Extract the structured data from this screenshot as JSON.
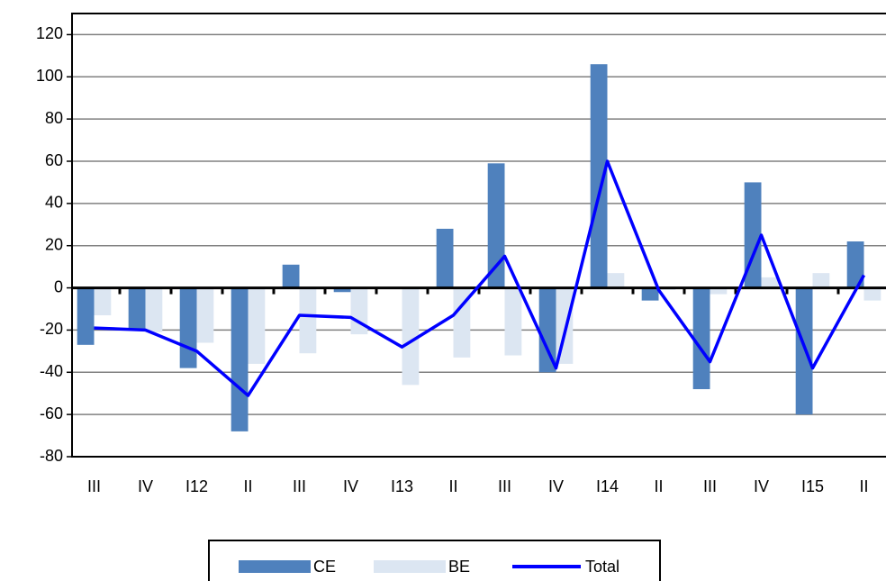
{
  "chart_data": {
    "type": "bar-line",
    "categories": [
      "III",
      "IV",
      "I12",
      "II",
      "III",
      "IV",
      "I13",
      "II",
      "III",
      "IV",
      "I14",
      "II",
      "III",
      "IV",
      "I15",
      "II"
    ],
    "series": [
      {
        "name": "CE",
        "type": "bar",
        "color": "#4f81bd",
        "values": [
          -27,
          -20,
          -38,
          -68,
          11,
          -2,
          0,
          28,
          59,
          -40,
          106,
          -6,
          -48,
          50,
          -60,
          22
        ]
      },
      {
        "name": "BE",
        "type": "bar",
        "color": "#dce6f2",
        "values": [
          -13,
          -21,
          -26,
          -36,
          -31,
          -22,
          -46,
          -33,
          -32,
          -36,
          7,
          -1,
          -3,
          5,
          7,
          -6
        ]
      },
      {
        "name": "Total",
        "type": "line",
        "color": "#0000ff",
        "values": [
          -19,
          -20,
          -30,
          -51,
          -13,
          -14,
          -28,
          -13,
          15,
          -38,
          60,
          -1,
          -35,
          25,
          -38,
          6
        ]
      }
    ],
    "ylim": [
      -80,
      130
    ],
    "yticks": [
      -80,
      -60,
      -40,
      -20,
      0,
      20,
      40,
      60,
      80,
      100,
      120
    ],
    "grid": true
  }
}
